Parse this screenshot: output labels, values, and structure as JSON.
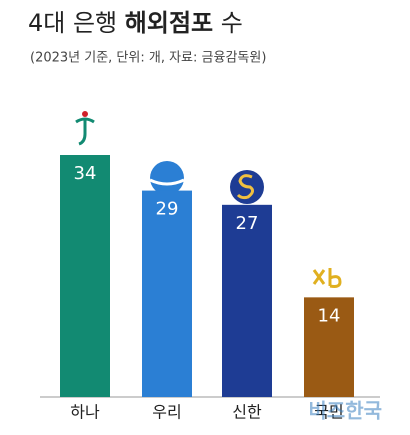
{
  "chart_data": {
    "type": "bar",
    "title_segments": [
      "4대 은행",
      "해외점포",
      "수"
    ],
    "subtitle": "(2023년 기준, 단위: 개, 자료: 금융감독원)",
    "categories": [
      "하나",
      "우리",
      "신한",
      "국민"
    ],
    "values": [
      34,
      29,
      27,
      14
    ],
    "colors": [
      "#128a72",
      "#2b7fd4",
      "#1e3c94",
      "#9a5a14"
    ],
    "watermark": "비즈한국"
  }
}
